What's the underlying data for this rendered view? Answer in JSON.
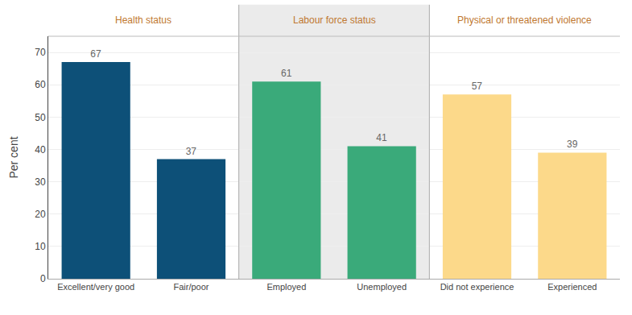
{
  "chart_data": {
    "type": "bar",
    "categories": [
      "Excellent/very good",
      "Fair/poor",
      "Employed",
      "Unemployed",
      "Did not experience",
      "Experienced"
    ],
    "values": [
      67,
      37,
      61,
      41,
      57,
      39
    ],
    "colors": [
      "#0d5078",
      "#0d5078",
      "#3aaa7a",
      "#3aaa7a",
      "#fcd98a",
      "#fcd98a"
    ],
    "ylabel": "Per cent",
    "ylim": [
      0,
      75
    ],
    "yticks": [
      0,
      10,
      20,
      30,
      40,
      50,
      60,
      70
    ],
    "grid": true,
    "data_labels": true,
    "annotations": [
      "Health status",
      "Labour force status",
      "Physical or threatened violence"
    ]
  }
}
